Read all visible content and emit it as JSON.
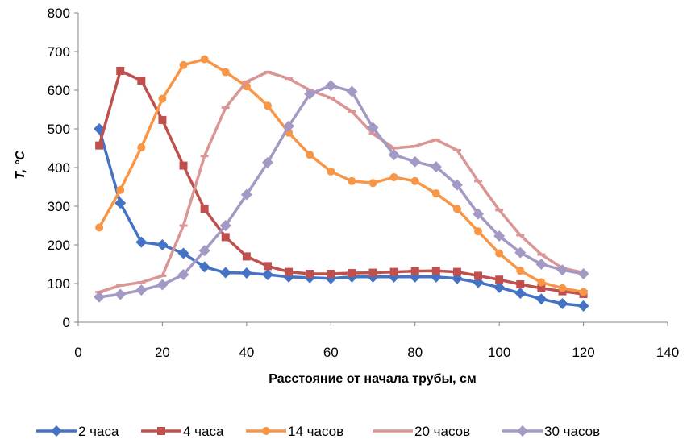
{
  "chart_data": {
    "type": "line",
    "title": "",
    "xlabel": "Расстояние от начала трубы, см",
    "ylabel": "T, °C",
    "xlim": [
      0,
      140
    ],
    "ylim": [
      0,
      800
    ],
    "xticks": [
      0,
      20,
      40,
      60,
      80,
      100,
      120,
      140
    ],
    "yticks": [
      0,
      100,
      200,
      300,
      400,
      500,
      600,
      700,
      800
    ],
    "grid": false,
    "legend": "bottom",
    "x": [
      5,
      10,
      15,
      20,
      25,
      30,
      35,
      40,
      45,
      50,
      55,
      60,
      65,
      70,
      75,
      80,
      85,
      90,
      95,
      100,
      105,
      110,
      115,
      120
    ],
    "series": [
      {
        "name": "2 часа",
        "color": "#4472C4",
        "marker": "diamond",
        "values": [
          500,
          308,
          207,
          200,
          178,
          143,
          128,
          127,
          123,
          117,
          115,
          113,
          117,
          117,
          117,
          117,
          117,
          113,
          103,
          90,
          75,
          60,
          48,
          42
        ]
      },
      {
        "name": "4 часа",
        "color": "#C0504D",
        "marker": "square",
        "values": [
          457,
          650,
          625,
          523,
          405,
          293,
          220,
          170,
          145,
          130,
          125,
          125,
          127,
          128,
          130,
          132,
          133,
          130,
          120,
          110,
          98,
          88,
          80,
          73
        ]
      },
      {
        "name": "14 часов",
        "color": "#F79646",
        "marker": "circle",
        "values": [
          245,
          342,
          452,
          578,
          665,
          680,
          647,
          610,
          560,
          490,
          433,
          390,
          365,
          360,
          375,
          365,
          333,
          293,
          235,
          178,
          133,
          103,
          88,
          78
        ]
      },
      {
        "name": "20 часов",
        "color": "#D99694",
        "marker": "dash",
        "values": [
          78,
          95,
          103,
          120,
          250,
          430,
          555,
          622,
          647,
          630,
          600,
          580,
          545,
          487,
          450,
          455,
          472,
          445,
          365,
          290,
          225,
          175,
          140,
          128
        ]
      },
      {
        "name": "30 часов",
        "color": "#A499C5",
        "marker": "diamond",
        "values": [
          65,
          72,
          83,
          97,
          123,
          185,
          250,
          330,
          413,
          507,
          590,
          612,
          597,
          503,
          433,
          415,
          402,
          355,
          280,
          223,
          180,
          150,
          135,
          125
        ]
      }
    ]
  }
}
